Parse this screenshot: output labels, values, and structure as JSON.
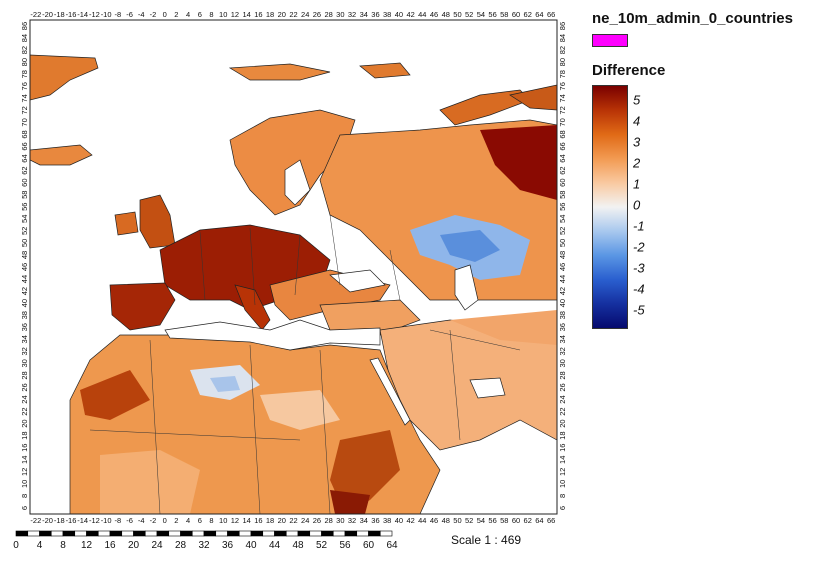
{
  "map": {
    "x_ticks": [
      -22,
      -20,
      -18,
      -16,
      -14,
      -12,
      -10,
      -8,
      -6,
      -4,
      -2,
      0,
      2,
      4,
      6,
      8,
      10,
      12,
      14,
      16,
      18,
      20,
      22,
      24,
      26,
      28,
      30,
      32,
      34,
      36,
      38,
      40,
      42,
      44,
      46,
      48,
      50,
      52,
      54,
      56,
      58,
      60,
      62,
      64,
      66
    ],
    "y_ticks": [
      6,
      8,
      10,
      12,
      14,
      16,
      18,
      20,
      22,
      24,
      26,
      28,
      30,
      32,
      34,
      36,
      38,
      40,
      42,
      44,
      46,
      48,
      50,
      52,
      54,
      56,
      58,
      60,
      62,
      64,
      66,
      68,
      70,
      72,
      74,
      76,
      78,
      80,
      82,
      84,
      86
    ],
    "xlim": [
      -23,
      67
    ],
    "ylim": [
      5,
      87
    ]
  },
  "legend": {
    "layer_name": "ne_10m_admin_0_countries",
    "layer_color": "#ff00ff",
    "difference_title": "Difference",
    "ramp_values": [
      "5",
      "4",
      "3",
      "2",
      "1",
      "0",
      "-1",
      "-2",
      "-3",
      "-4",
      "-5"
    ],
    "ramp_colors": [
      "#7a0000",
      "#b83306",
      "#e06a16",
      "#f29a52",
      "#f9c9a0",
      "#f2f2f2",
      "#a8c8ee",
      "#5a96e4",
      "#2a5fcf",
      "#1530a0",
      "#060a6e"
    ]
  },
  "scalebar": {
    "labels": [
      "0",
      "4",
      "8",
      "12",
      "16",
      "20",
      "24",
      "28",
      "32",
      "36",
      "40",
      "44",
      "48",
      "52",
      "56",
      "60",
      "64"
    ],
    "scale_text": "Scale 1 : 469"
  }
}
